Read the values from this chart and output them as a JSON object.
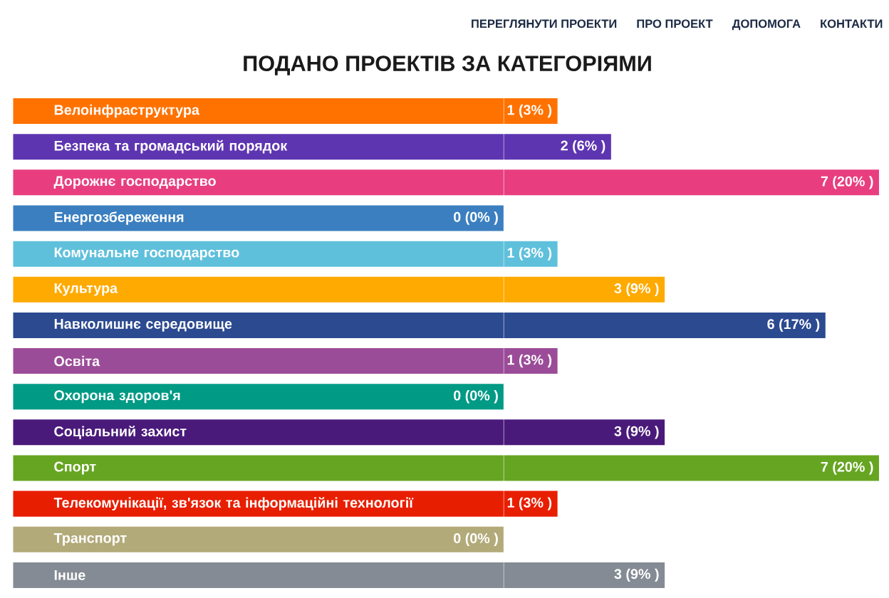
{
  "chart_data": {
    "type": "bar",
    "title": "ПОДАНО ПРОЕКТІВ ЗА КАТЕГОРІЯМИ",
    "orientation": "horizontal",
    "tick_labels": "y",
    "xlim": [
      0,
      7
    ],
    "categories": [
      "Велоінфраструктура",
      "Безпека та громадський порядок",
      "Дорожнє господарство",
      "Енергозбереження",
      "Комунальне господарство",
      "Культура",
      "Навколишнє середовище",
      "Освіта",
      "Охорона здоров'я",
      "Соціальний захист",
      "Спорт",
      "Телекомунікації, зв'язок та інформаційні технології",
      "Транспорт",
      "Інше"
    ],
    "values": [
      1,
      2,
      7,
      0,
      1,
      3,
      6,
      1,
      0,
      3,
      7,
      1,
      0,
      3
    ],
    "colors": [
      "#ff7200",
      "#5e35b1",
      "#e83e80",
      "#3b7fc0",
      "#5fc0dc",
      "#ffaa00",
      "#2c4a90",
      "#9b4c98",
      "#009a85",
      "#4a1a7a",
      "#66a521",
      "#e81e00",
      "#b3aa7a",
      "#848b94"
    ],
    "value_labels": [
      "1 (3% )",
      "2 (6% )",
      "7 (20% )",
      "0 (0% )",
      "1 (3% )",
      "3 (9% )",
      "6 (17% )",
      "1 (3% )",
      "0 (0% )",
      "3 (9% )",
      "7 (20% )",
      "1 (3% )",
      "0 (0% )",
      "3 (9% )"
    ],
    "annotations": [
      "ПЕРЕГЛЯНУТИ ПРОЕКТИ",
      "ПРО ПРОЕКТ",
      "ДОПОМОГА",
      "КОНТАКТИ"
    ]
  }
}
